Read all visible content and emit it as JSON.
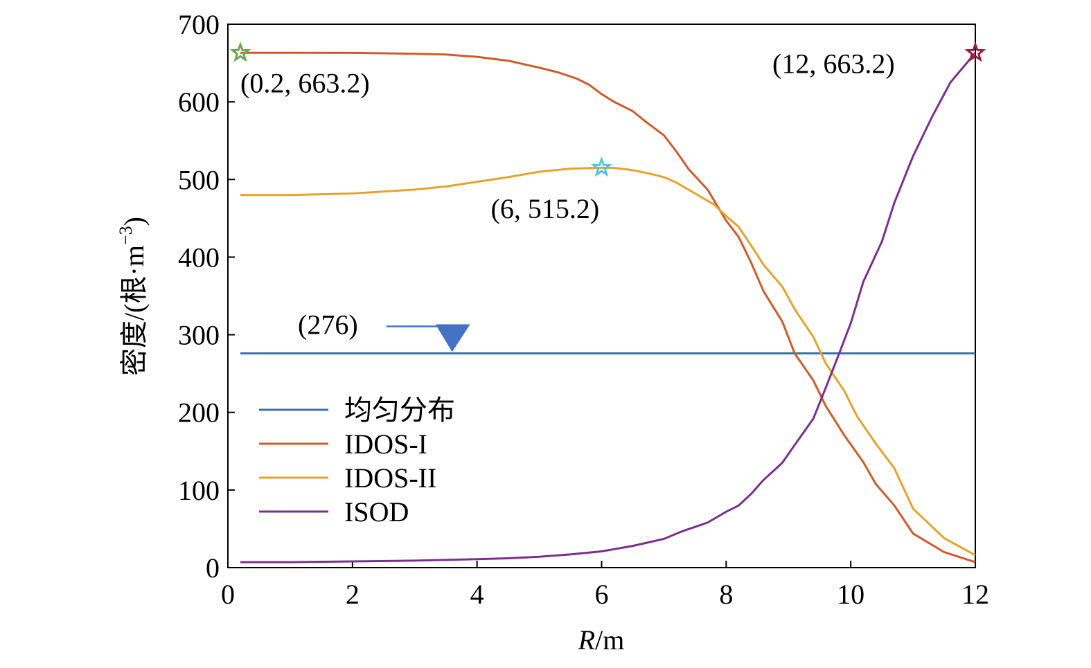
{
  "chart_data": {
    "type": "line",
    "xlabel_italic": "R",
    "xlabel_unit": "/m",
    "ylabel_main": "密度/(根·m",
    "ylabel_sup": "−3",
    "ylabel_close": ")",
    "xlim": [
      0,
      12
    ],
    "ylim": [
      0,
      700
    ],
    "xticks": [
      0,
      2,
      4,
      6,
      8,
      10,
      12
    ],
    "yticks": [
      0,
      100,
      200,
      300,
      400,
      500,
      600,
      700
    ],
    "grid": false,
    "legend_position": "lower-left",
    "series": [
      {
        "name": "均匀分布",
        "color": "#3a6fb5",
        "x": [
          0.2,
          12
        ],
        "y": [
          276,
          276
        ]
      },
      {
        "name": "IDOS-I",
        "color": "#cf5b2a",
        "x": [
          0.2,
          1,
          2,
          3,
          3.5,
          4,
          4.5,
          5,
          5.3,
          5.6,
          5.8,
          6,
          6.2,
          6.5,
          6.7,
          7,
          7.2,
          7.4,
          7.7,
          8,
          8.2,
          8.4,
          8.6,
          8.9,
          9.1,
          9.4,
          9.6,
          9.9,
          10.2,
          10.4,
          10.7,
          11,
          11.5,
          12
        ],
        "y": [
          663.2,
          663.2,
          663.1,
          662,
          661,
          658,
          653,
          644,
          638,
          630,
          622,
          610,
          600,
          588,
          575,
          557,
          536,
          513,
          487,
          447,
          426,
          393,
          356,
          317,
          276,
          241,
          208,
          170,
          136,
          108,
          80,
          44,
          20,
          7
        ]
      },
      {
        "name": "IDOS-II",
        "color": "#e6a32a",
        "x": [
          0.2,
          1,
          2,
          3,
          3.5,
          4,
          4.5,
          5,
          5.5,
          6,
          6.2,
          6.5,
          6.8,
          7,
          7.2,
          7.5,
          7.8,
          8,
          8.2,
          8.4,
          8.6,
          8.9,
          9.1,
          9.4,
          9.6,
          9.9,
          10.1,
          10.4,
          10.7,
          11,
          11.5,
          12
        ],
        "y": [
          480,
          480,
          482,
          487,
          491,
          497,
          503,
          510,
          514,
          515.2,
          515,
          512,
          507,
          503,
          496,
          482,
          468,
          453,
          439,
          415,
          390,
          362,
          333,
          297,
          263,
          227,
          195,
          160,
          128,
          76,
          38,
          16
        ]
      },
      {
        "name": "ISOD",
        "color": "#7a2f8e",
        "x": [
          0.2,
          1,
          2,
          3,
          4,
          4.5,
          5,
          5.5,
          6,
          6.5,
          7,
          7.3,
          7.7,
          8,
          8.2,
          8.4,
          8.6,
          8.9,
          9.1,
          9.4,
          9.6,
          9.8,
          10,
          10.2,
          10.5,
          10.7,
          11,
          11.3,
          11.6,
          12
        ],
        "y": [
          7,
          7,
          8,
          9,
          11,
          12,
          14,
          17,
          21,
          28,
          37,
          47,
          58,
          72,
          80,
          95,
          113,
          135,
          158,
          192,
          232,
          273,
          315,
          368,
          420,
          470,
          530,
          580,
          625,
          663.2
        ]
      }
    ],
    "annotations": [
      {
        "text": "(0.2, 663.2)",
        "x": 0.2,
        "y": 663.2,
        "marker": "star",
        "color": "#6aa84f"
      },
      {
        "text": "(6, 515.2)",
        "x": 6,
        "y": 515.2,
        "marker": "star",
        "color": "#5bc0de"
      },
      {
        "text": "(12, 663.2)",
        "x": 12,
        "y": 663.2,
        "marker": "star",
        "color": "#9b1c3a"
      },
      {
        "text": "(276)",
        "x": 3.6,
        "y": 276,
        "marker": "arrow",
        "color": "#4472c4"
      }
    ]
  }
}
